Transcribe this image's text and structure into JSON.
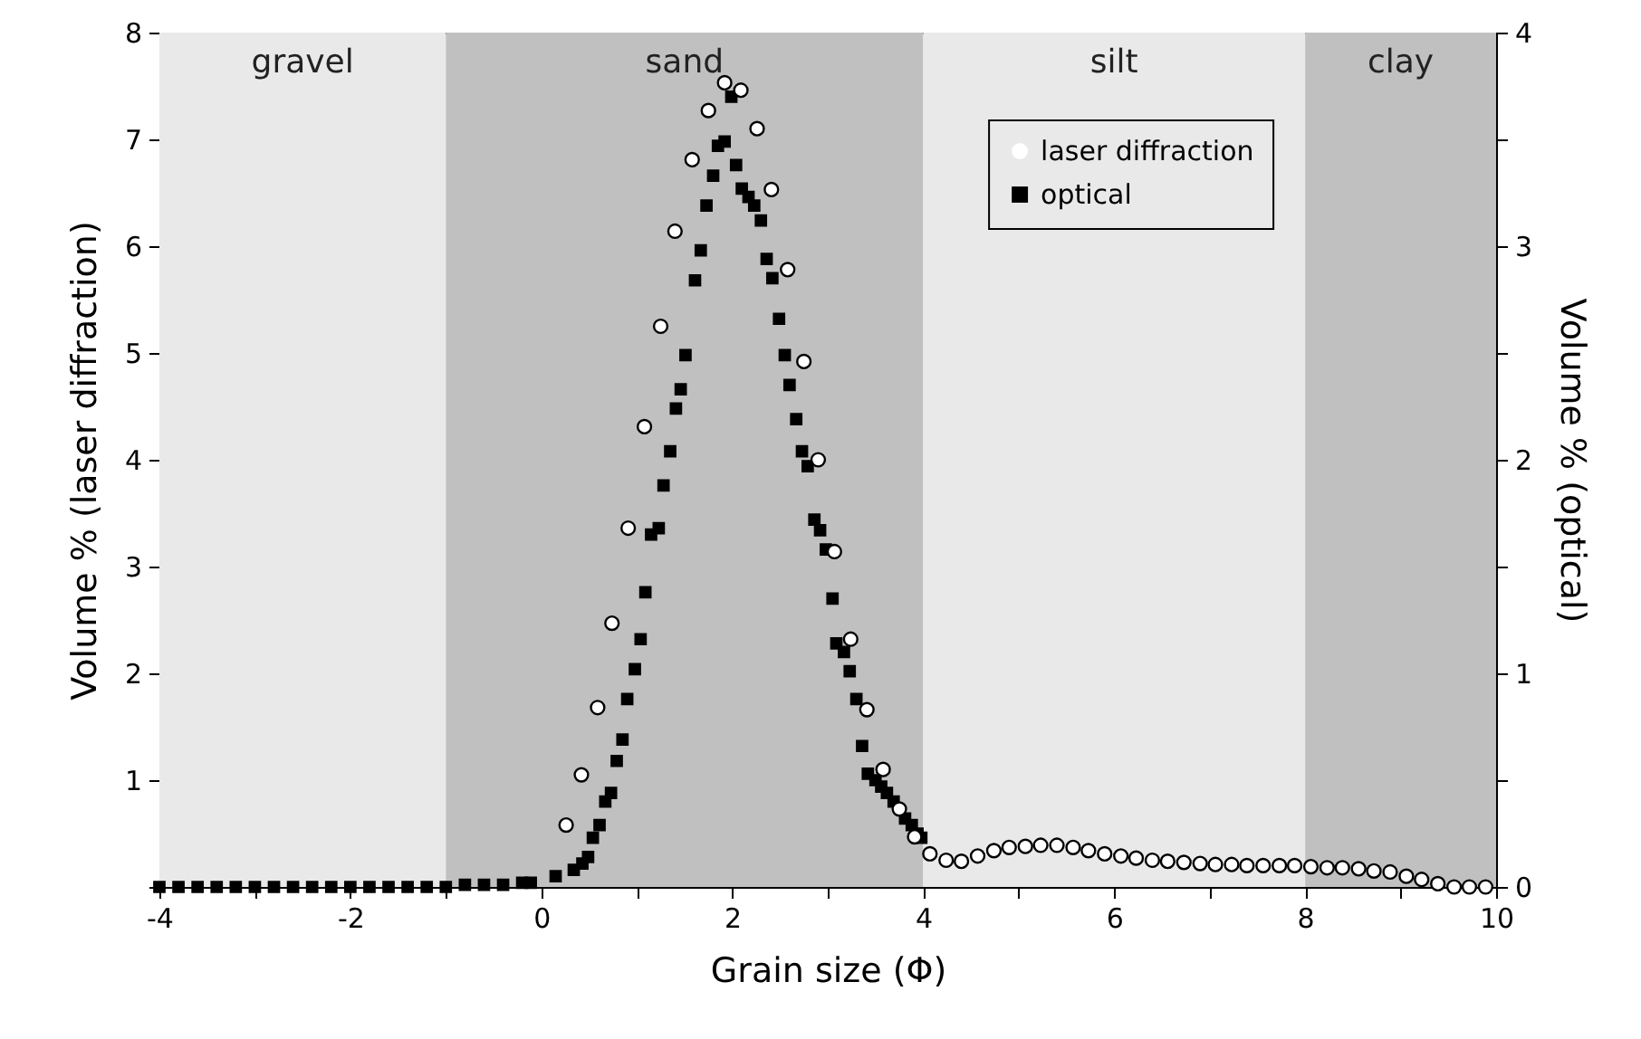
{
  "chart_data": {
    "type": "scatter",
    "xlabel": "Grain size (Φ)",
    "ylabel": "Volume % (laser diffraction)",
    "y2label": "Volume % (optical)",
    "xlim": [
      -4,
      10
    ],
    "xticks": [
      -4,
      {
        "value": -3,
        "label": null
      },
      -2,
      {
        "value": -1,
        "label": null
      },
      0,
      {
        "value": 1,
        "label": null
      },
      2,
      {
        "value": 3,
        "label": null
      },
      4,
      {
        "value": 5,
        "label": null
      },
      6,
      {
        "value": 7,
        "label": null
      },
      8,
      {
        "value": 9,
        "label": null
      },
      10
    ],
    "ylim": [
      0,
      8
    ],
    "yticks": [
      {
        "value": 0,
        "label": null
      },
      1,
      2,
      3,
      4,
      5,
      6,
      7,
      8
    ],
    "y2lim": [
      0,
      4
    ],
    "y2ticks": [
      0,
      {
        "value": 0.5,
        "label": null
      },
      1,
      {
        "value": 1.5,
        "label": null
      },
      2,
      {
        "value": 2.5,
        "label": null
      },
      3,
      {
        "value": 3.5,
        "label": null
      },
      4
    ],
    "bands": [
      {
        "axis": "x",
        "from": -4,
        "to": -1,
        "label": "gravel",
        "color": "#e9e9e9"
      },
      {
        "axis": "x",
        "from": -1,
        "to": 4,
        "label": "sand",
        "color": "#c0c0c0"
      },
      {
        "axis": "x",
        "from": 4,
        "to": 8,
        "label": "silt",
        "color": "#e9e9e9"
      },
      {
        "axis": "x",
        "from": 8,
        "to": 10,
        "label": "clay",
        "color": "#c0c0c0"
      }
    ],
    "legend": "top right",
    "grid": false,
    "series": [
      {
        "name": "laser diffraction",
        "color": "#ffffff",
        "marker": "circle",
        "x": [
          0.26,
          0.42,
          0.59,
          0.74,
          0.91,
          1.08,
          1.25,
          1.4,
          1.58,
          1.75,
          1.92,
          2.09,
          2.26,
          2.41,
          2.58,
          2.75,
          2.9,
          3.07,
          3.24,
          3.41,
          3.58,
          3.75,
          3.91,
          4.07,
          4.24,
          4.4,
          4.57,
          4.74,
          4.9,
          5.07,
          5.23,
          5.4,
          5.57,
          5.73,
          5.9,
          6.07,
          6.23,
          6.4,
          6.56,
          6.73,
          6.9,
          7.06,
          7.23,
          7.39,
          7.56,
          7.73,
          7.89,
          8.06,
          8.23,
          8.39,
          8.56,
          8.72,
          8.89,
          9.06,
          9.22,
          9.39,
          9.56,
          9.72,
          9.89
        ],
        "values": [
          0.58,
          1.05,
          1.68,
          2.47,
          3.36,
          4.31,
          5.25,
          6.14,
          6.81,
          7.27,
          7.53,
          7.46,
          7.1,
          6.53,
          5.78,
          4.92,
          4.0,
          3.14,
          2.32,
          1.66,
          1.1,
          0.73,
          0.47,
          0.31,
          0.25,
          0.24,
          0.29,
          0.34,
          0.37,
          0.38,
          0.39,
          0.39,
          0.37,
          0.34,
          0.31,
          0.29,
          0.27,
          0.25,
          0.24,
          0.23,
          0.22,
          0.21,
          0.21,
          0.2,
          0.2,
          0.2,
          0.2,
          0.19,
          0.18,
          0.18,
          0.17,
          0.15,
          0.14,
          0.1,
          0.07,
          0.03,
          0,
          0,
          0
        ]
      },
      {
        "name": "optical",
        "color": "#000000",
        "marker": "square",
        "axis": "y2",
        "x": [
          -4,
          -3.8,
          -3.6,
          -3.4,
          -3.2,
          -3,
          -2.8,
          -2.6,
          -2.4,
          -2.2,
          -2,
          -1.8,
          -1.6,
          -1.4,
          -1.2,
          -1,
          -0.8,
          -0.6,
          -0.4,
          -0.2,
          -0.11,
          0.15,
          0.34,
          0.43,
          0.49,
          0.54,
          0.61,
          0.67,
          0.73,
          0.79,
          0.85,
          0.9,
          0.98,
          1.04,
          1.09,
          1.15,
          1.23,
          1.28,
          1.35,
          1.41,
          1.46,
          1.51,
          1.61,
          1.67,
          1.73,
          1.8,
          1.85,
          1.92,
          1.99,
          2.04,
          2.1,
          2.17,
          2.23,
          2.3,
          2.36,
          2.42,
          2.49,
          2.55,
          2.6,
          2.67,
          2.73,
          2.79,
          2.86,
          2.92,
          2.98,
          3.05,
          3.09,
          3.17,
          3.23,
          3.3,
          3.36,
          3.42,
          3.5,
          3.56,
          3.62,
          3.69,
          3.75,
          3.81,
          3.88,
          3.94,
          3.98
        ],
        "values": [
          0,
          0,
          0,
          0,
          0,
          0,
          0,
          0,
          0,
          0,
          0,
          0,
          0,
          0,
          0,
          0,
          0.01,
          0.01,
          0.01,
          0.02,
          0.02,
          0.05,
          0.08,
          0.11,
          0.14,
          0.23,
          0.29,
          0.4,
          0.44,
          0.59,
          0.69,
          0.88,
          1.02,
          1.16,
          1.38,
          1.65,
          1.68,
          1.88,
          2.04,
          2.24,
          2.33,
          2.49,
          2.84,
          2.98,
          3.19,
          3.33,
          3.47,
          3.49,
          3.7,
          3.38,
          3.27,
          3.23,
          3.19,
          3.12,
          2.94,
          2.85,
          2.66,
          2.49,
          2.35,
          2.19,
          2.04,
          1.97,
          1.72,
          1.67,
          1.58,
          1.35,
          1.14,
          1.1,
          1.01,
          0.88,
          0.66,
          0.53,
          0.5,
          0.47,
          0.44,
          0.4,
          null,
          0.32,
          0.29,
          0.25,
          0.23
        ]
      }
    ]
  }
}
